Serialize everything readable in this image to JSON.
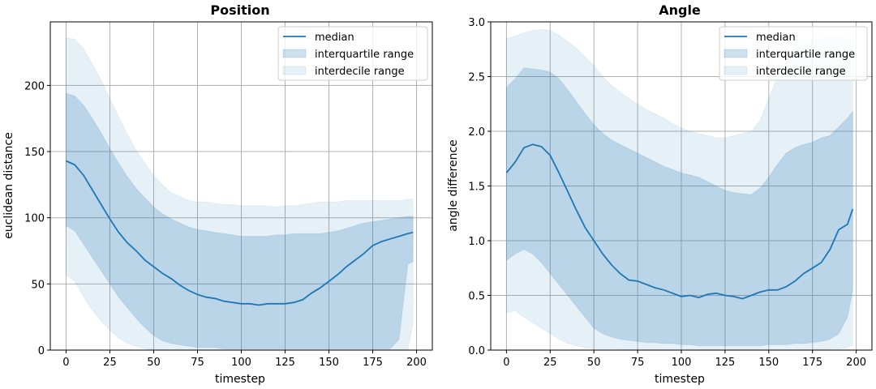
{
  "colors": {
    "median": "#1f77b4",
    "band": "#1f77b4",
    "grid": "#b0b0b0",
    "axes": "#000000"
  },
  "chart_data": [
    {
      "type": "line",
      "title": "Position",
      "xlabel": "timestep",
      "ylabel": "euclidean distance",
      "xlim": [
        -9,
        209
      ],
      "ylim": [
        0,
        248
      ],
      "xticks": [
        0,
        25,
        50,
        75,
        100,
        125,
        150,
        175,
        200
      ],
      "yticks": [
        0,
        50,
        100,
        150,
        200
      ],
      "ytick_labels": [
        "0",
        "50",
        "100",
        "150",
        "200"
      ],
      "grid": true,
      "legend": {
        "position": "top-right",
        "entries": [
          "median",
          "interquartile range",
          "interdecile range"
        ]
      },
      "x": [
        0,
        5,
        10,
        15,
        20,
        25,
        30,
        35,
        40,
        45,
        50,
        55,
        60,
        65,
        70,
        75,
        80,
        85,
        90,
        95,
        100,
        105,
        110,
        115,
        120,
        125,
        130,
        135,
        140,
        145,
        150,
        155,
        160,
        165,
        170,
        175,
        180,
        185,
        190,
        195,
        198
      ],
      "series": [
        {
          "name": "median",
          "values": [
            143,
            140,
            132,
            121,
            110,
            99,
            89,
            81,
            75,
            68,
            63,
            58,
            54,
            49,
            45,
            42,
            40,
            39,
            37,
            36,
            35,
            35,
            34,
            35,
            35,
            35,
            36,
            38,
            43,
            47,
            52,
            57,
            63,
            68,
            73,
            79,
            82,
            84,
            86,
            88,
            89
          ]
        },
        {
          "name": "interquartile range",
          "lower": [
            94,
            90,
            80,
            70,
            60,
            50,
            40,
            32,
            24,
            17,
            11,
            7,
            5,
            4,
            3,
            2,
            2,
            2,
            1,
            1,
            1,
            1,
            1,
            1,
            1,
            1,
            1,
            1,
            1,
            1,
            1,
            1,
            1,
            1,
            1,
            1,
            1,
            1,
            8,
            65,
            67
          ],
          "upper": [
            194,
            192,
            185,
            175,
            164,
            152,
            141,
            131,
            122,
            115,
            108,
            103,
            99,
            96,
            93,
            91,
            90,
            89,
            88,
            87,
            86,
            86,
            86,
            86,
            87,
            87,
            88,
            88,
            88,
            88,
            89,
            90,
            92,
            94,
            96,
            97,
            98,
            99,
            100,
            101,
            101
          ]
        },
        {
          "name": "interdecile range",
          "lower": [
            57,
            52,
            40,
            30,
            22,
            15,
            9,
            5,
            3,
            1,
            0,
            0,
            0,
            0,
            0,
            0,
            0,
            0,
            0,
            0,
            0,
            0,
            0,
            0,
            0,
            0,
            0,
            0,
            0,
            0,
            0,
            0,
            0,
            0,
            0,
            0,
            0,
            0,
            0,
            0,
            20
          ],
          "upper": [
            236,
            235,
            228,
            216,
            204,
            190,
            176,
            163,
            151,
            141,
            132,
            125,
            119,
            116,
            113,
            112,
            112,
            111,
            110,
            110,
            109,
            109,
            109,
            109,
            108,
            109,
            109,
            110,
            111,
            112,
            112,
            112,
            113,
            113,
            113,
            113,
            113,
            113,
            113,
            114,
            114
          ]
        }
      ]
    },
    {
      "type": "line",
      "title": "Angle",
      "xlabel": "timestep",
      "ylabel": "angle difference",
      "xlim": [
        -9,
        209
      ],
      "ylim": [
        0,
        3.0
      ],
      "xticks": [
        0,
        25,
        50,
        75,
        100,
        125,
        150,
        175,
        200
      ],
      "yticks": [
        0,
        0.5,
        1.0,
        1.5,
        2.0,
        2.5,
        3.0
      ],
      "ytick_labels": [
        "0.0",
        "0.5",
        "1.0",
        "1.5",
        "2.0",
        "2.5",
        "3.0"
      ],
      "grid": true,
      "legend": {
        "position": "top-right",
        "entries": [
          "median",
          "interquartile range",
          "interdecile range"
        ]
      },
      "x": [
        0,
        5,
        10,
        15,
        20,
        25,
        30,
        35,
        40,
        45,
        50,
        55,
        60,
        65,
        70,
        75,
        80,
        85,
        90,
        95,
        100,
        105,
        110,
        115,
        120,
        125,
        130,
        135,
        140,
        145,
        150,
        155,
        160,
        165,
        170,
        175,
        180,
        185,
        190,
        195,
        198
      ],
      "series": [
        {
          "name": "median",
          "values": [
            1.62,
            1.72,
            1.85,
            1.88,
            1.86,
            1.78,
            1.62,
            1.45,
            1.28,
            1.12,
            1.0,
            0.88,
            0.78,
            0.7,
            0.64,
            0.63,
            0.6,
            0.57,
            0.55,
            0.52,
            0.49,
            0.5,
            0.48,
            0.51,
            0.52,
            0.5,
            0.49,
            0.47,
            0.5,
            0.53,
            0.55,
            0.55,
            0.58,
            0.63,
            0.7,
            0.75,
            0.8,
            0.92,
            1.1,
            1.15,
            1.29
          ]
        },
        {
          "name": "interquartile range",
          "lower": [
            0.82,
            0.88,
            0.92,
            0.88,
            0.8,
            0.7,
            0.6,
            0.5,
            0.4,
            0.3,
            0.2,
            0.15,
            0.12,
            0.1,
            0.09,
            0.08,
            0.07,
            0.07,
            0.06,
            0.06,
            0.05,
            0.05,
            0.04,
            0.04,
            0.04,
            0.04,
            0.04,
            0.04,
            0.04,
            0.04,
            0.05,
            0.05,
            0.05,
            0.06,
            0.06,
            0.07,
            0.08,
            0.1,
            0.15,
            0.3,
            0.55
          ],
          "upper": [
            2.4,
            2.48,
            2.58,
            2.57,
            2.56,
            2.54,
            2.48,
            2.38,
            2.27,
            2.16,
            2.06,
            1.98,
            1.92,
            1.88,
            1.84,
            1.8,
            1.76,
            1.72,
            1.68,
            1.65,
            1.62,
            1.6,
            1.58,
            1.54,
            1.5,
            1.46,
            1.44,
            1.43,
            1.42,
            1.48,
            1.58,
            1.7,
            1.8,
            1.85,
            1.88,
            1.9,
            1.94,
            1.96,
            2.04,
            2.12,
            2.18
          ]
        },
        {
          "name": "interdecile range",
          "lower": [
            0.34,
            0.36,
            0.3,
            0.25,
            0.2,
            0.15,
            0.1,
            0.06,
            0.04,
            0.02,
            0.01,
            0.01,
            0.01,
            0.01,
            0.0,
            0.0,
            0.0,
            0.0,
            0.0,
            0.0,
            0.0,
            0.0,
            0.0,
            0.0,
            0.0,
            0.0,
            0.0,
            0.0,
            0.0,
            0.0,
            0.0,
            0.0,
            0.0,
            0.0,
            0.0,
            0.0,
            0.0,
            0.01,
            0.01,
            0.02,
            0.05
          ],
          "upper": [
            2.85,
            2.87,
            2.9,
            2.92,
            2.93,
            2.92,
            2.88,
            2.82,
            2.76,
            2.68,
            2.6,
            2.5,
            2.42,
            2.36,
            2.3,
            2.25,
            2.2,
            2.16,
            2.12,
            2.07,
            2.03,
            2.0,
            1.98,
            1.96,
            1.94,
            1.94,
            1.96,
            1.98,
            2.0,
            2.1,
            2.3,
            2.5,
            2.65,
            2.75,
            2.8,
            2.83,
            2.85,
            2.86,
            2.86,
            2.85,
            2.84
          ]
        }
      ]
    }
  ]
}
